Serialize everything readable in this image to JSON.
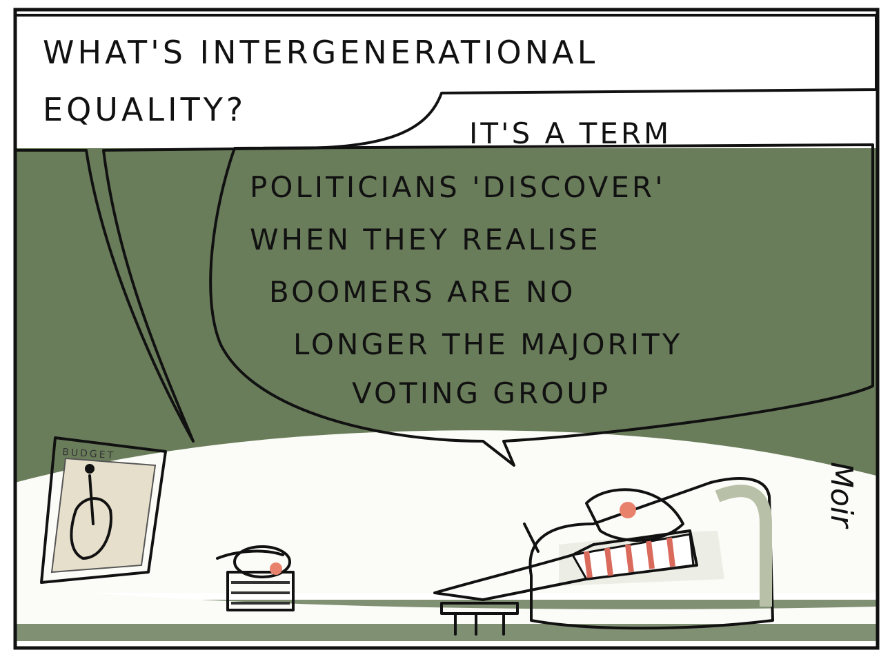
{
  "bubble_1": {
    "lines": [
      "WHAT'S INTERGENERATIONAL",
      "EQUALITY?"
    ]
  },
  "bubble_2": {
    "lines": [
      "IT'S A TERM",
      "POLITICIANS 'DISCOVER'",
      "WHEN THEY REALISE",
      "BOOMERS ARE NO",
      "LONGER THE MAJORITY",
      "VOTING GROUP"
    ]
  },
  "tv_screen": {
    "label": "BUDGET"
  },
  "signature": "Moir"
}
